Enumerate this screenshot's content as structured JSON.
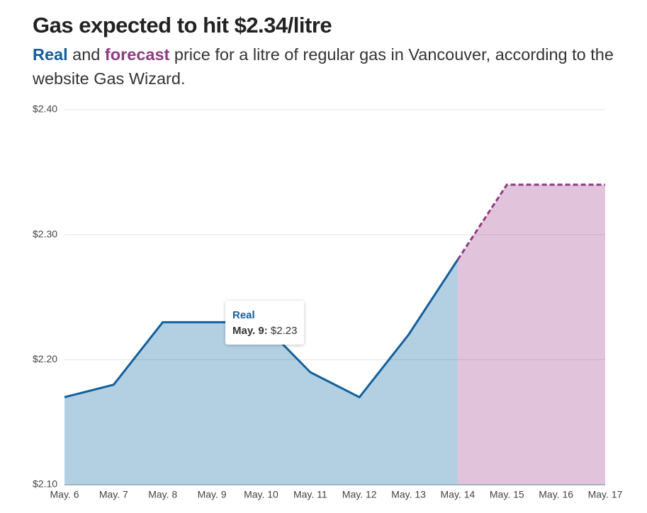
{
  "chart_data": {
    "type": "area",
    "title": "Gas expected to hit $2.34/litre",
    "subtitle": {
      "real": "Real",
      "and": " and ",
      "forecast": "forecast",
      "rest": " price for a litre of regular gas in Vancouver, according to the website Gas Wizard."
    },
    "categories": [
      "May. 6",
      "May. 7",
      "May. 8",
      "May. 9",
      "May. 10",
      "May. 11",
      "May. 12",
      "May. 13",
      "May. 14",
      "May. 15",
      "May. 16",
      "May. 17"
    ],
    "series": [
      {
        "name": "Real",
        "color": "#135f9c",
        "fill": "#b3d0e3",
        "dashed": false,
        "values": [
          2.17,
          2.18,
          2.23,
          2.23,
          2.23,
          2.19,
          2.17,
          2.22,
          2.28,
          null,
          null,
          null
        ]
      },
      {
        "name": "Forecast",
        "color": "#8c3b80",
        "fill": "#e2c3dc",
        "dashed": true,
        "values": [
          null,
          null,
          null,
          null,
          null,
          null,
          null,
          null,
          2.28,
          2.34,
          2.34,
          2.34
        ]
      }
    ],
    "ylim": [
      2.1,
      2.4
    ],
    "yticks": [
      {
        "value": 2.1,
        "label": "$2.10"
      },
      {
        "value": 2.2,
        "label": "$2.20"
      },
      {
        "value": 2.3,
        "label": "$2.30"
      },
      {
        "value": 2.4,
        "label": "$2.40"
      }
    ],
    "grid": true,
    "tooltip": {
      "title": "Real",
      "label": "May. 9:",
      "value": "$2.23"
    }
  }
}
